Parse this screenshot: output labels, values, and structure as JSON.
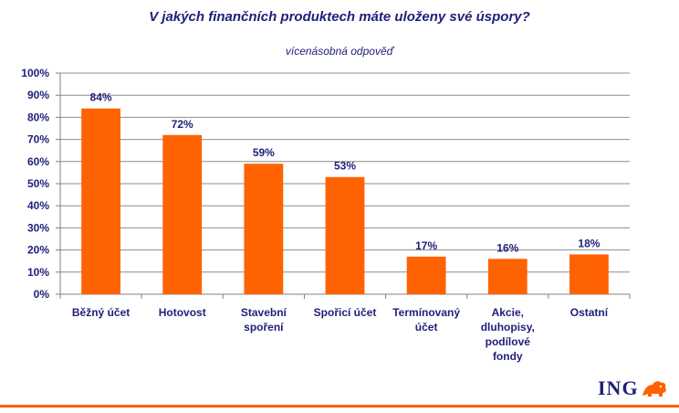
{
  "title": "V jakých finančních produktech máte uloženy své úspory?",
  "subtitle": "vícenásobná odpověď",
  "brand": {
    "logo_text": "ING",
    "accent": "#ff6200",
    "text_color": "#1f1f7a"
  },
  "chart_data": {
    "type": "bar",
    "categories": [
      [
        "Běžný účet"
      ],
      [
        "Hotovost"
      ],
      [
        "Stavební",
        "spoření"
      ],
      [
        "Spořicí účet"
      ],
      [
        "Termínovaný",
        "účet"
      ],
      [
        "Akcie,",
        "dluhopisy,",
        "podílové",
        "fondy"
      ],
      [
        "Ostatní"
      ]
    ],
    "values": [
      84,
      72,
      59,
      53,
      17,
      16,
      18
    ],
    "data_labels": [
      "84%",
      "72%",
      "59%",
      "53%",
      "17%",
      "16%",
      "18%"
    ],
    "ylim": [
      0,
      100
    ],
    "yticks": [
      0,
      10,
      20,
      30,
      40,
      50,
      60,
      70,
      80,
      90,
      100
    ],
    "ytick_labels": [
      "0%",
      "10%",
      "20%",
      "30%",
      "40%",
      "50%",
      "60%",
      "70%",
      "80%",
      "90%",
      "100%"
    ],
    "grid": true,
    "bar_color": "#ff6200",
    "xlabel": "",
    "ylabel": ""
  }
}
